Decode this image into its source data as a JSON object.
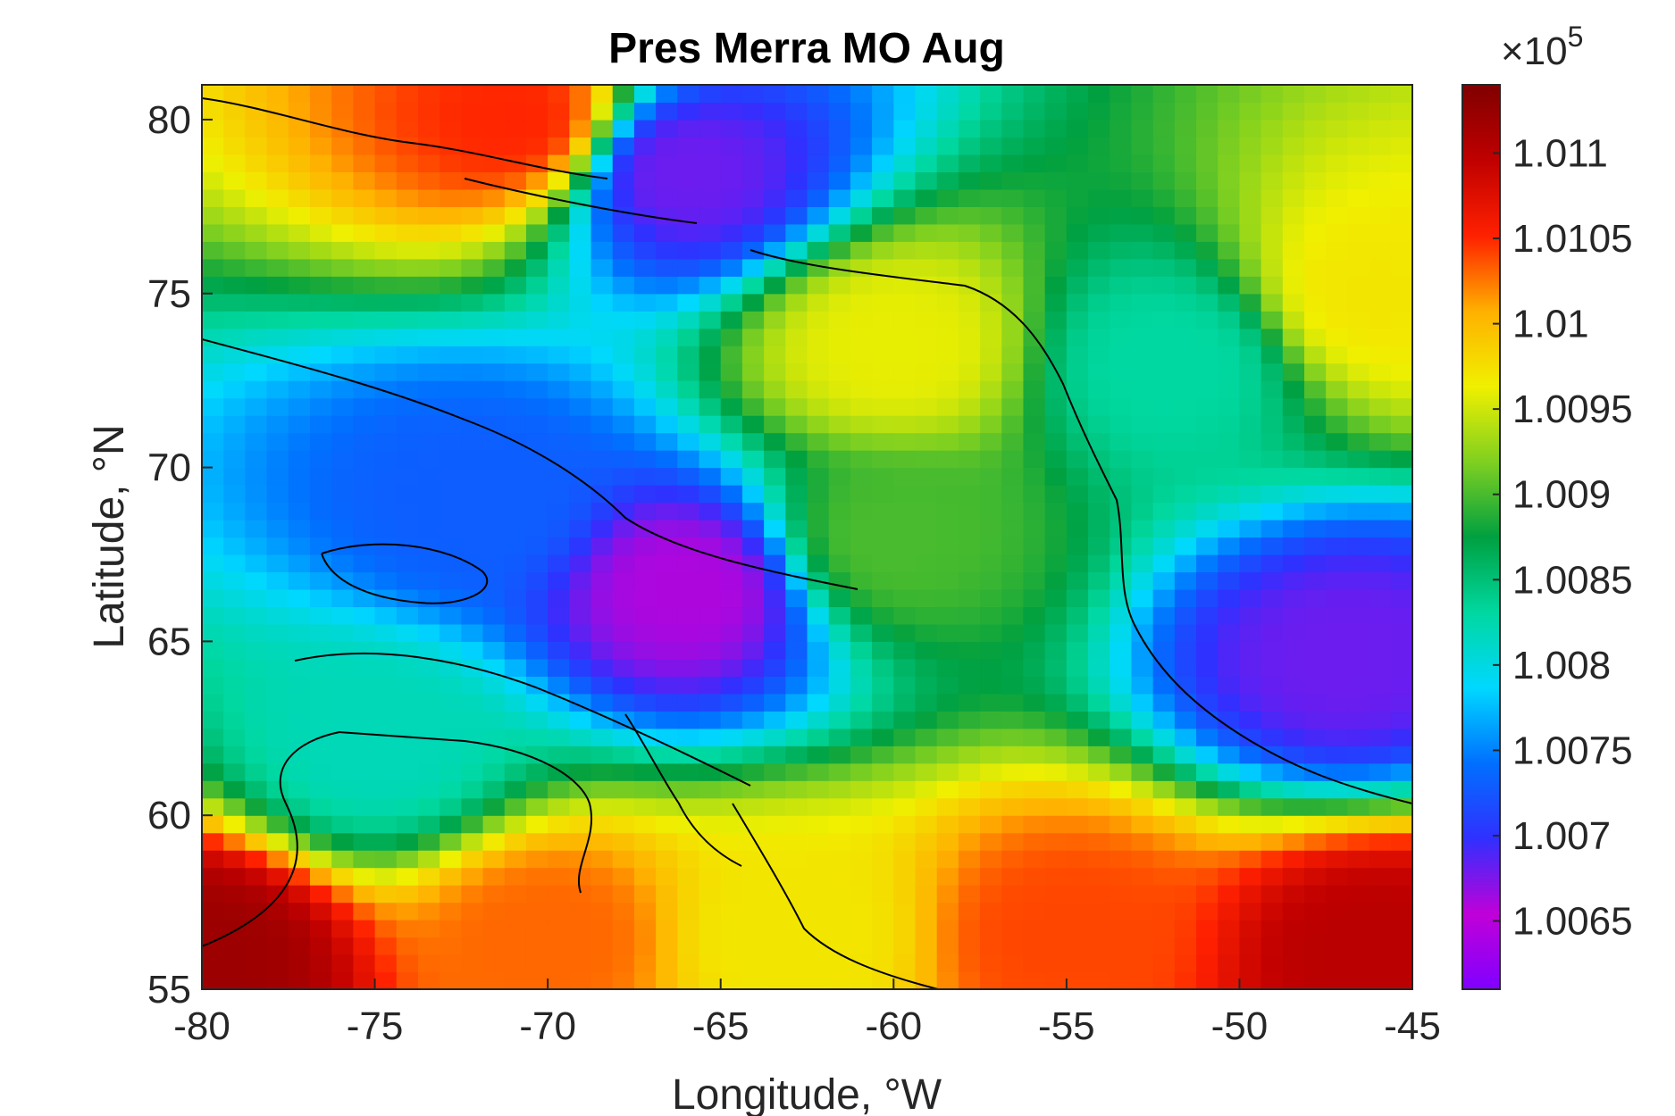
{
  "chart_data": {
    "type": "heatmap",
    "title": "Pres Merra MO Aug",
    "xlabel": "Longitude, °W",
    "ylabel": "Latitude, °N",
    "xlim": [
      -80,
      -45
    ],
    "ylim": [
      55,
      81
    ],
    "x_ticks": [
      "-80",
      "-75",
      "-70",
      "-65",
      "-60",
      "-55",
      "-50",
      "-45"
    ],
    "x_tick_values": [
      -80,
      -75,
      -70,
      -65,
      -60,
      -55,
      -50,
      -45
    ],
    "y_ticks": [
      "55",
      "60",
      "65",
      "70",
      "75",
      "80"
    ],
    "y_tick_values": [
      55,
      60,
      65,
      70,
      75,
      80
    ],
    "colorbar": {
      "range": [
        1.0061,
        1.0114
      ],
      "exponent_prefix": "×10",
      "exponent_power": "5",
      "ticks": [
        "1.0065",
        "1.007",
        "1.0075",
        "1.008",
        "1.0085",
        "1.009",
        "1.0095",
        "1.01",
        "1.0105",
        "1.011"
      ],
      "tick_values": [
        1.0065,
        1.007,
        1.0075,
        1.008,
        1.0085,
        1.009,
        1.0095,
        1.01,
        1.0105,
        1.011
      ],
      "colormap": [
        "#8000ff",
        "#c000d8",
        "#3030ff",
        "#0070ff",
        "#00d8ff",
        "#00d8a0",
        "#00a040",
        "#80d020",
        "#f0f000",
        "#ffb000",
        "#ff2000",
        "#c00000",
        "#800000"
      ]
    },
    "grid": false,
    "field_samples": [
      {
        "lon": -80,
        "lat": 56,
        "value": 1.0112
      },
      {
        "lon": -70,
        "lat": 56.5,
        "value": 1.0103
      },
      {
        "lon": -63,
        "lat": 56.5,
        "value": 1.0097
      },
      {
        "lon": -55,
        "lat": 56.5,
        "value": 1.0104
      },
      {
        "lon": -46,
        "lat": 56,
        "value": 1.011
      },
      {
        "lon": -75,
        "lat": 62,
        "value": 1.0082
      },
      {
        "lon": -72,
        "lat": 69,
        "value": 1.0073
      },
      {
        "lon": -66,
        "lat": 66.5,
        "value": 1.0066
      },
      {
        "lon": -60,
        "lat": 73.5,
        "value": 1.0096
      },
      {
        "lon": -60,
        "lat": 68,
        "value": 1.009
      },
      {
        "lon": -66,
        "lat": 78.5,
        "value": 1.0068
      },
      {
        "lon": -71,
        "lat": 80,
        "value": 1.0105
      },
      {
        "lon": -47,
        "lat": 64.5,
        "value": 1.0068
      },
      {
        "lon": -46,
        "lat": 75,
        "value": 1.0097
      },
      {
        "lon": -52,
        "lat": 73,
        "value": 1.0083
      }
    ]
  }
}
